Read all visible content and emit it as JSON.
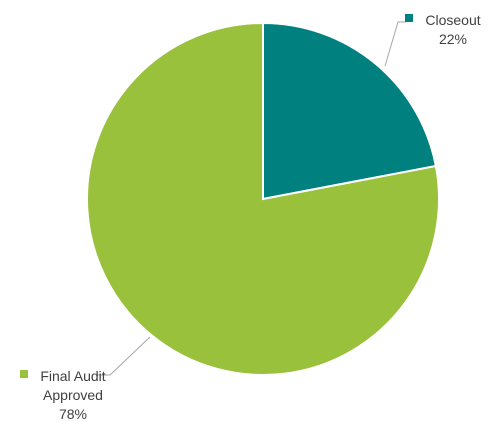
{
  "chart_data": {
    "type": "pie",
    "title": "",
    "categories": [
      "Closeout",
      "Final Audit Approved"
    ],
    "values": [
      22,
      78
    ],
    "value_labels": [
      "22%",
      "78%"
    ],
    "label_lines": [
      [
        "Closeout",
        "22%"
      ],
      [
        "Final Audit",
        "Approved",
        "78%"
      ]
    ],
    "colors": [
      "#00807f",
      "#99c13b"
    ],
    "start_angle_deg": 0,
    "direction": "clockwise",
    "labels_outside": true
  }
}
